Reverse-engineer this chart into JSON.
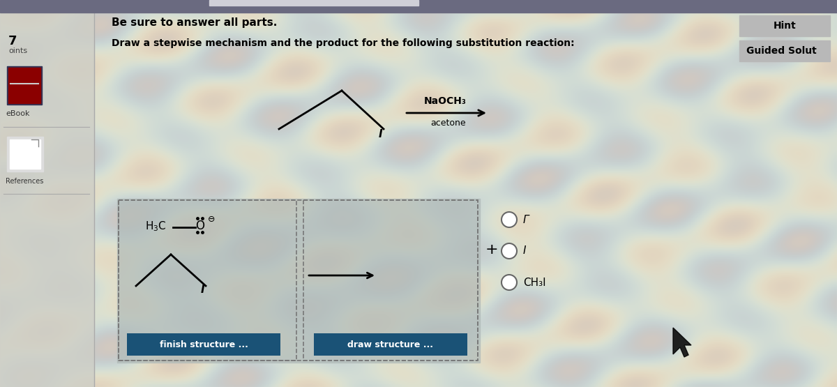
{
  "title": "Be sure to answer all parts.",
  "question": "Draw a stepwise mechanism and the product for the following substitution reaction:",
  "reagent_line1": "NaOCH₃",
  "reagent_line2": "acetone",
  "hint_text": "Hint",
  "guided_text": "Guided Solut",
  "radio_labels": [
    "Γ",
    "I",
    "CH₃I"
  ],
  "finish_btn": "finish structure ...",
  "draw_btn": "draw structure ...",
  "bg_color": "#c8c8b8",
  "sidebar_bg": "#d8d8d0",
  "btn_color": "#1a5276",
  "btn_text_color": "#ffffff",
  "top_bar_color": "#888890",
  "panel_bg": "#9aabb0",
  "box_border": "#888888",
  "white_area": "#e8e8e0"
}
